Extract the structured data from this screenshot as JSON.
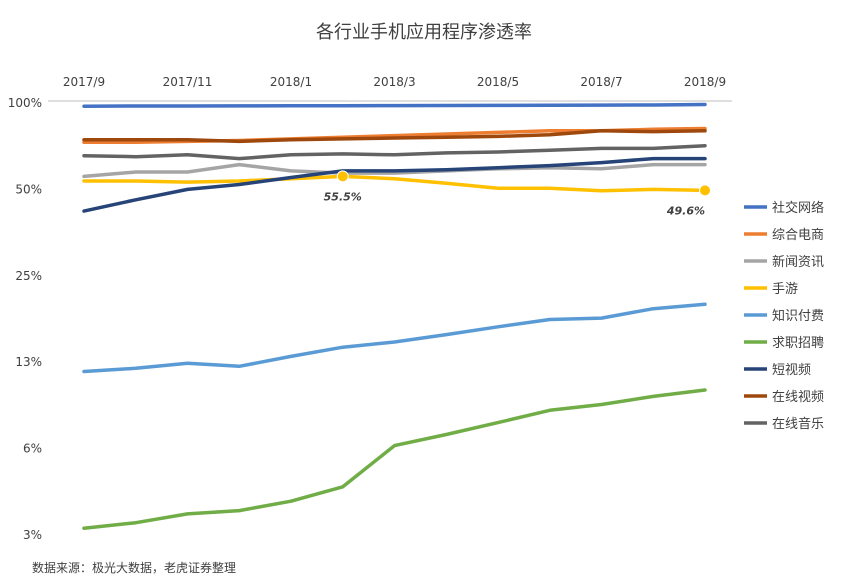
{
  "chart_data": {
    "type": "line",
    "title": "各行业手机应用程序渗透率",
    "source_note": "数据来源：极光大数据，老虎证券整理",
    "x": [
      "2017/9",
      "2017/10",
      "2017/11",
      "2017/12",
      "2018/1",
      "2018/2",
      "2018/3",
      "2018/4",
      "2018/5",
      "2018/6",
      "2018/7",
      "2018/8",
      "2018/9"
    ],
    "x_tick_labels": [
      "2017/9",
      "2017/11",
      "2018/1",
      "2018/3",
      "2018/5",
      "2018/7",
      "2018/9"
    ],
    "x_axis_position": "top",
    "y_scale": "log2",
    "y_tick_labels": [
      "100%",
      "50%",
      "25%",
      "13%",
      "6%",
      "3%"
    ],
    "ylim": [
      3.125,
      100
    ],
    "grid": false,
    "legend_position": "right",
    "series": [
      {
        "name": "社交网络",
        "color": "#4472C4",
        "values": [
          97.5,
          97.6,
          97.6,
          97.7,
          97.8,
          97.8,
          97.9,
          98.0,
          98.1,
          98.2,
          98.3,
          98.4,
          98.8
        ]
      },
      {
        "name": "综合电商",
        "color": "#ED7D31",
        "values": [
          73.0,
          73.0,
          73.5,
          74.0,
          75.0,
          76.0,
          77.0,
          78.0,
          79.0,
          80.0,
          80.0,
          81.0,
          81.5
        ]
      },
      {
        "name": "新闻资讯",
        "color": "#A5A5A5",
        "values": [
          55.5,
          57.5,
          57.5,
          61.0,
          58.0,
          57.0,
          57.0,
          58.0,
          59.0,
          59.5,
          59.0,
          61.0,
          61.0
        ]
      },
      {
        "name": "手游",
        "color": "#FFC000",
        "values": [
          53.5,
          53.5,
          53.0,
          53.5,
          54.5,
          55.5,
          54.5,
          52.5,
          50.5,
          50.5,
          49.5,
          50.0,
          49.6
        ]
      },
      {
        "name": "知识付费",
        "color": "#5B9BD5",
        "values": [
          11.6,
          11.9,
          12.4,
          12.1,
          13.1,
          14.1,
          14.7,
          15.6,
          16.6,
          17.6,
          17.8,
          19.2,
          19.9
        ]
      },
      {
        "name": "求职招聘",
        "color": "#70AD47",
        "values": [
          3.3,
          3.45,
          3.7,
          3.8,
          4.1,
          4.6,
          6.4,
          7.0,
          7.7,
          8.5,
          8.9,
          9.5,
          10.0
        ]
      },
      {
        "name": "短视频",
        "color": "#264478",
        "values": [
          42.0,
          46.0,
          50.0,
          52.0,
          55.0,
          58.0,
          58.0,
          58.5,
          59.5,
          60.5,
          62.0,
          64.0,
          64.0
        ]
      },
      {
        "name": "在线视频",
        "color": "#9E480E",
        "values": [
          74.5,
          74.5,
          74.5,
          73.5,
          74.5,
          75.0,
          75.5,
          76.0,
          76.5,
          77.5,
          80.0,
          79.5,
          80.0
        ]
      },
      {
        "name": "在线音乐",
        "color": "#636363",
        "values": [
          65.5,
          65.0,
          66.0,
          64.0,
          66.0,
          66.5,
          66.0,
          67.0,
          67.5,
          68.5,
          69.5,
          69.5,
          71.0
        ]
      }
    ],
    "annotations": [
      {
        "series": "手游",
        "x": "2018/2",
        "value": 55.5,
        "label": "55.5%"
      },
      {
        "series": "手游",
        "x": "2018/9",
        "value": 49.6,
        "label": "49.6%"
      }
    ]
  }
}
